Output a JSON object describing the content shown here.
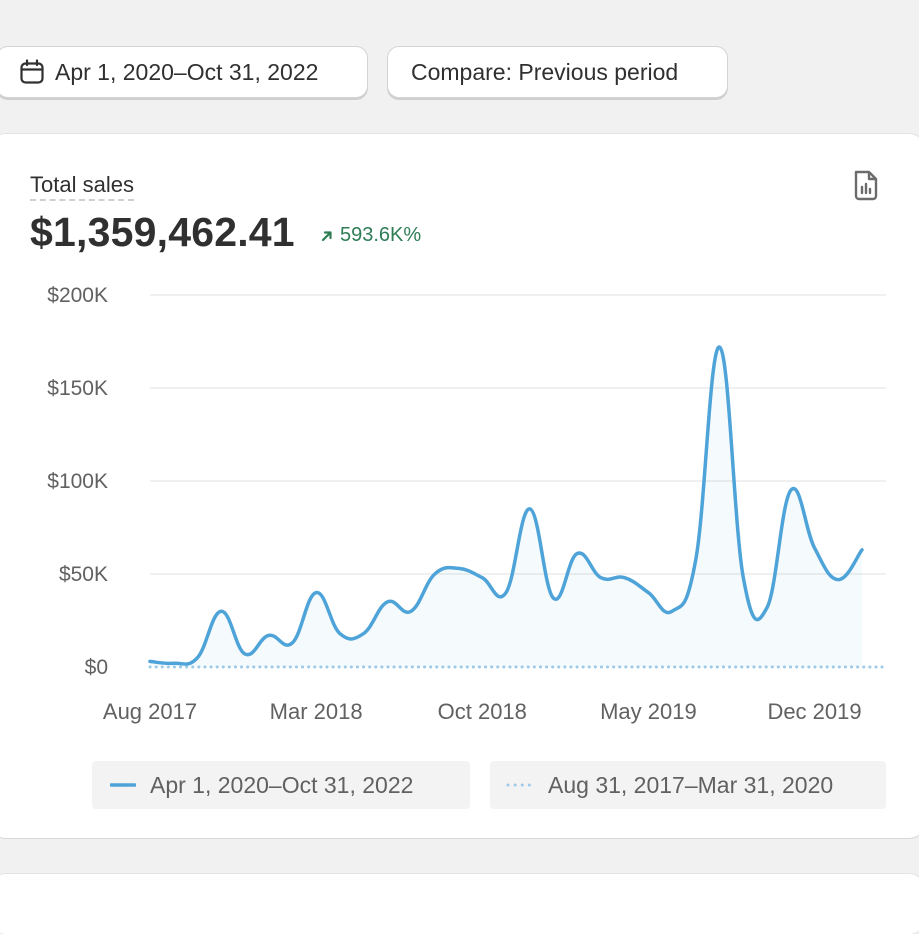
{
  "toolbar": {
    "date_range_label": "Apr 1, 2020–Oct 31, 2022",
    "date_icon": "calendar-icon",
    "compare_label": "Compare: Previous period"
  },
  "metric": {
    "label": "Total sales",
    "value": "$1,359,462.41",
    "change": "593.6K%",
    "change_icon": "arrow-up-right-icon",
    "report_icon": "report-document-icon"
  },
  "colors": {
    "primary_series": "#4ea3d8",
    "comparison_series": "#9fcbe8",
    "positive": "#2e7d55"
  },
  "chart_data": {
    "type": "line",
    "ylim": [
      0,
      200000
    ],
    "y_ticks": [
      0,
      50000,
      100000,
      150000,
      200000
    ],
    "y_tick_labels": [
      "$0",
      "$50K",
      "$100K",
      "$150K",
      "$200K"
    ],
    "x_tick_labels": [
      "Aug 2017",
      "Mar 2018",
      "Oct 2018",
      "May 2019",
      "Dec 2019"
    ],
    "x_tick_index": [
      0,
      7,
      14,
      21,
      28
    ],
    "grid": true,
    "legend_position": "bottom",
    "series": [
      {
        "name": "Apr 1, 2020–Oct 31, 2022",
        "style": "solid",
        "values": [
          3000,
          2000,
          5000,
          30000,
          7000,
          17000,
          13000,
          40000,
          18000,
          18000,
          35000,
          30000,
          50000,
          53000,
          48000,
          40000,
          85000,
          37000,
          61000,
          48000,
          48000,
          40000,
          30000,
          58000,
          172000,
          48000,
          32000,
          95000,
          64000,
          47000,
          63000
        ]
      },
      {
        "name": "Aug 31, 2017–Mar 31, 2020",
        "style": "dotted",
        "values": [
          0,
          0,
          0,
          0,
          0,
          0,
          0,
          0,
          0,
          0,
          0,
          0,
          0,
          0,
          0,
          0,
          0,
          0,
          0,
          0,
          0,
          0,
          0,
          0,
          0,
          0,
          0,
          0,
          0,
          0,
          0
        ]
      }
    ]
  },
  "legend": {
    "item1": "Apr 1, 2020–Oct 31, 2022",
    "item2": "Aug 31, 2017–Mar 31, 2020"
  }
}
